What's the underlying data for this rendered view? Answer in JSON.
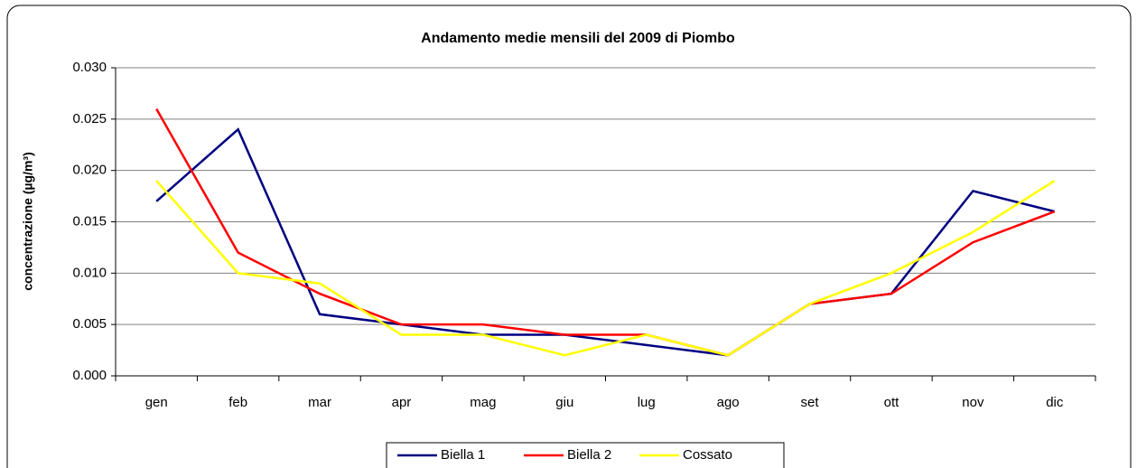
{
  "chart_data": {
    "type": "line",
    "title": "Andamento medie mensili del 2009 di Piombo",
    "y_label": "concentrazione (µg/m³)",
    "categories": [
      "gen",
      "feb",
      "mar",
      "apr",
      "mag",
      "giu",
      "lug",
      "ago",
      "set",
      "ott",
      "nov",
      "dic"
    ],
    "series": [
      {
        "name": "Biella 1",
        "color": "#000080",
        "values": [
          0.017,
          0.024,
          0.006,
          0.005,
          0.004,
          0.004,
          0.003,
          0.002,
          0.007,
          0.008,
          0.018,
          0.016
        ]
      },
      {
        "name": "Biella 2",
        "color": "#ff0000",
        "values": [
          0.026,
          0.012,
          0.008,
          0.005,
          0.005,
          0.004,
          0.004,
          0.002,
          0.007,
          0.008,
          0.013,
          0.016
        ]
      },
      {
        "name": "Cossato",
        "color": "#ffff00",
        "values": [
          0.019,
          0.01,
          0.009,
          0.004,
          0.004,
          0.002,
          0.004,
          0.002,
          0.007,
          0.01,
          0.014,
          0.019
        ]
      }
    ],
    "ylim": [
      0,
      0.03
    ],
    "yticks": [
      {
        "value": 0,
        "label": "0.000"
      },
      0.005,
      {
        "value": 0.01,
        "label": "0.010"
      },
      0.015,
      {
        "value": 0.02,
        "label": "0.020"
      },
      0.025,
      {
        "value": 0.03,
        "label": "0.030"
      }
    ],
    "grid": true,
    "legend": "bottom"
  }
}
